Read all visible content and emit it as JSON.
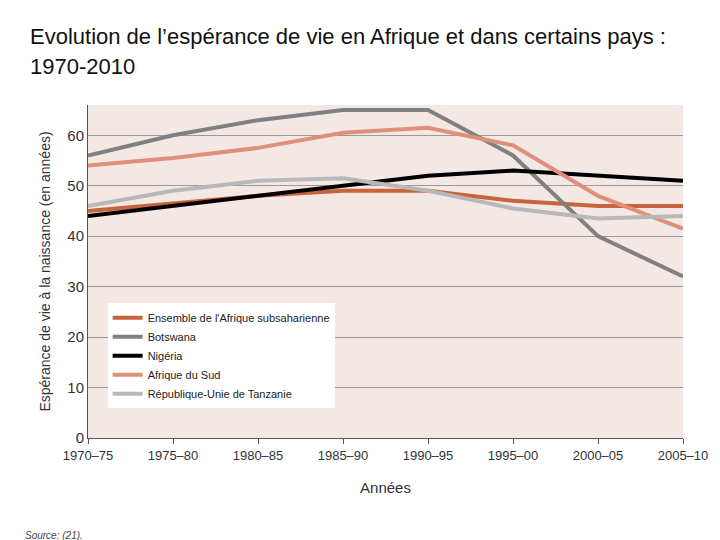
{
  "chart_data": {
    "type": "line",
    "title": "Evolution de l’espérance de vie en Afrique et dans certains pays : 1970-2010",
    "x_label": "Années",
    "y_label": "Espérance de vie à la naissance (en années)",
    "annotations": [
      "Source: (21)."
    ],
    "categories": [
      "1970–75",
      "1975–80",
      "1980–85",
      "1985–90",
      "1990–95",
      "1995–00",
      "2000–05",
      "2005–10"
    ],
    "series": [
      {
        "name": "Ensemble de l'Afrique subsaharienne",
        "color": "#c8643c",
        "values": [
          45,
          46.5,
          48,
          49,
          49,
          47,
          46,
          46
        ]
      },
      {
        "name": "Botswana",
        "color": "#808080",
        "values": [
          56,
          60,
          63,
          65,
          65,
          56,
          40,
          32
        ]
      },
      {
        "name": "Nigéria",
        "color": "#000000",
        "values": [
          44,
          46,
          48,
          50,
          52,
          53,
          52,
          51
        ]
      },
      {
        "name": "Afrique du Sud",
        "color": "#e0907a",
        "values": [
          54,
          55.5,
          57.5,
          60.5,
          61.5,
          58,
          48,
          41.5
        ]
      },
      {
        "name": "République-Unie de Tanzanie",
        "color": "#b8b8b8",
        "values": [
          46,
          49,
          51,
          51.5,
          49,
          45.5,
          43.5,
          44
        ]
      }
    ],
    "ylim": [
      0,
      66
    ],
    "yticks": [
      0,
      10,
      20,
      30,
      40,
      50,
      60
    ],
    "grid": true,
    "legend": "lower left"
  }
}
